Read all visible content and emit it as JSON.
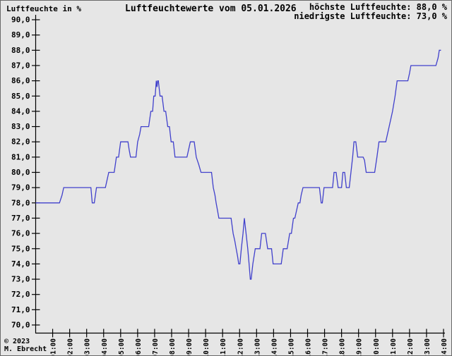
{
  "header": {
    "y_axis_title": "Luftfeuchte in %",
    "title": "Luftfeuchtewerte vom 05.01.2026",
    "stat_max": "höchste Luftfeuchte: 88,0 %",
    "stat_min": "niedrigste Luftfeuchte: 73,0 %"
  },
  "footer": {
    "copyright": "© 2023",
    "author": "M. Ebrecht"
  },
  "chart_data": {
    "type": "line",
    "title": "Luftfeuchtewerte vom 05.01.2026",
    "ylabel": "Luftfeuchte in %",
    "x_unit": "hour_of_day",
    "xlim": [
      0,
      24
    ],
    "ylim": [
      70,
      90
    ],
    "y_tick_step": 1.0,
    "grid": false,
    "legend": "none",
    "line_color": "#4040cc",
    "axis_color": "#000000",
    "background_color": "#e6e6e6",
    "highest_value": 88.0,
    "lowest_value": 73.0,
    "x_tick_labels": [
      "01:00",
      "02:00",
      "03:00",
      "04:00",
      "05:00",
      "06:00",
      "07:00",
      "08:00",
      "09:00",
      "10:00",
      "11:00",
      "12:00",
      "13:00",
      "14:00",
      "15:00",
      "16:00",
      "17:00",
      "18:00",
      "19:00",
      "20:00",
      "21:00",
      "22:00",
      "23:00",
      "24:00"
    ],
    "series": [
      {
        "name": "Luftfeuchte",
        "points": [
          [
            0.0,
            78
          ],
          [
            1.4,
            78
          ],
          [
            1.55,
            78.5
          ],
          [
            1.65,
            79
          ],
          [
            3.25,
            79
          ],
          [
            3.33,
            78
          ],
          [
            3.45,
            78
          ],
          [
            3.58,
            79
          ],
          [
            4.1,
            79
          ],
          [
            4.2,
            79.5
          ],
          [
            4.3,
            80
          ],
          [
            4.62,
            80
          ],
          [
            4.75,
            81
          ],
          [
            4.88,
            81
          ],
          [
            5.0,
            82
          ],
          [
            5.43,
            82
          ],
          [
            5.5,
            81.5
          ],
          [
            5.58,
            81
          ],
          [
            5.9,
            81
          ],
          [
            6.0,
            82
          ],
          [
            6.12,
            82.5
          ],
          [
            6.2,
            83
          ],
          [
            6.65,
            83
          ],
          [
            6.78,
            84
          ],
          [
            6.88,
            84
          ],
          [
            6.95,
            85
          ],
          [
            7.03,
            85
          ],
          [
            7.1,
            86
          ],
          [
            7.14,
            85.6
          ],
          [
            7.18,
            86
          ],
          [
            7.22,
            86
          ],
          [
            7.32,
            85
          ],
          [
            7.44,
            85
          ],
          [
            7.55,
            84
          ],
          [
            7.65,
            84
          ],
          [
            7.77,
            83
          ],
          [
            7.87,
            83
          ],
          [
            7.97,
            82
          ],
          [
            8.1,
            82
          ],
          [
            8.2,
            81
          ],
          [
            8.9,
            81
          ],
          [
            9.0,
            81.5
          ],
          [
            9.1,
            82
          ],
          [
            9.33,
            82
          ],
          [
            9.45,
            81
          ],
          [
            9.6,
            80.5
          ],
          [
            9.73,
            80
          ],
          [
            10.35,
            80
          ],
          [
            10.45,
            79
          ],
          [
            10.55,
            78.5
          ],
          [
            10.62,
            78
          ],
          [
            10.7,
            77.5
          ],
          [
            10.78,
            77
          ],
          [
            11.5,
            77
          ],
          [
            11.62,
            76
          ],
          [
            11.72,
            75.5
          ],
          [
            11.8,
            75
          ],
          [
            11.88,
            74.5
          ],
          [
            11.95,
            74
          ],
          [
            12.02,
            74
          ],
          [
            12.1,
            75
          ],
          [
            12.2,
            76
          ],
          [
            12.28,
            77
          ],
          [
            12.38,
            76
          ],
          [
            12.48,
            75
          ],
          [
            12.56,
            74
          ],
          [
            12.63,
            73
          ],
          [
            12.68,
            73
          ],
          [
            12.78,
            74
          ],
          [
            12.92,
            75
          ],
          [
            13.2,
            75
          ],
          [
            13.3,
            76
          ],
          [
            13.52,
            76
          ],
          [
            13.65,
            75
          ],
          [
            13.88,
            75
          ],
          [
            13.97,
            74
          ],
          [
            14.45,
            74
          ],
          [
            14.57,
            75
          ],
          [
            14.8,
            75
          ],
          [
            14.95,
            76
          ],
          [
            15.05,
            76
          ],
          [
            15.17,
            77
          ],
          [
            15.25,
            77
          ],
          [
            15.35,
            77.5
          ],
          [
            15.45,
            78
          ],
          [
            15.55,
            78
          ],
          [
            15.62,
            78.5
          ],
          [
            15.73,
            79
          ],
          [
            16.7,
            79
          ],
          [
            16.8,
            78
          ],
          [
            16.87,
            78
          ],
          [
            16.97,
            79
          ],
          [
            17.47,
            79
          ],
          [
            17.56,
            80
          ],
          [
            17.68,
            80
          ],
          [
            17.8,
            79
          ],
          [
            18.0,
            79
          ],
          [
            18.08,
            80
          ],
          [
            18.18,
            80
          ],
          [
            18.28,
            79
          ],
          [
            18.45,
            79
          ],
          [
            18.55,
            80
          ],
          [
            18.65,
            81
          ],
          [
            18.73,
            82
          ],
          [
            18.84,
            82
          ],
          [
            18.95,
            81
          ],
          [
            19.27,
            81
          ],
          [
            19.35,
            80.8
          ],
          [
            19.45,
            80
          ],
          [
            19.95,
            80
          ],
          [
            20.08,
            81
          ],
          [
            20.2,
            82
          ],
          [
            20.6,
            82
          ],
          [
            20.8,
            83
          ],
          [
            21.0,
            84
          ],
          [
            21.15,
            85
          ],
          [
            21.27,
            86
          ],
          [
            21.9,
            86
          ],
          [
            22.0,
            86.5
          ],
          [
            22.08,
            87
          ],
          [
            23.55,
            87
          ],
          [
            23.68,
            87.5
          ],
          [
            23.75,
            88
          ],
          [
            23.85,
            88
          ]
        ]
      }
    ]
  }
}
